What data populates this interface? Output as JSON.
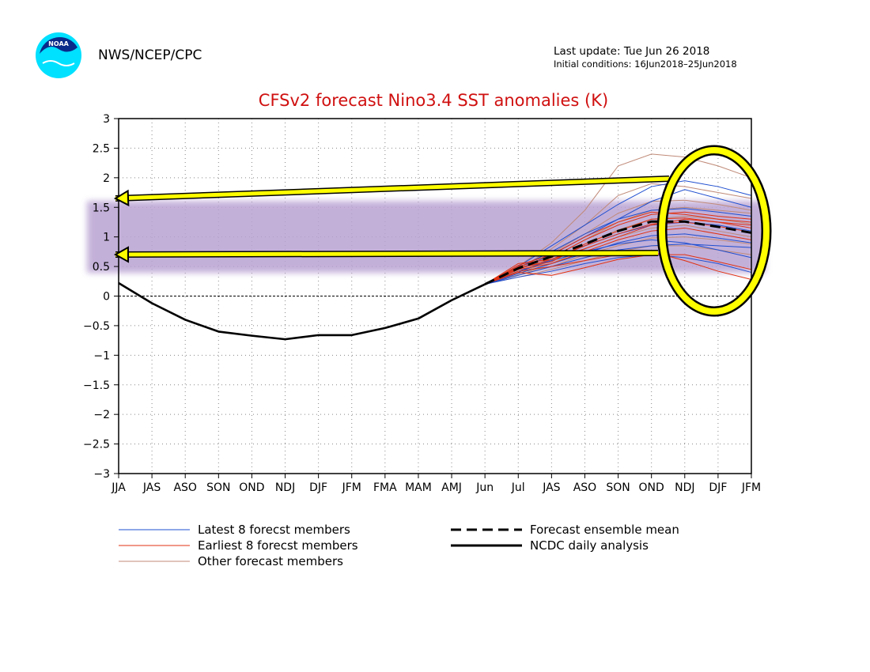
{
  "header": {
    "agency": "NWS/NCEP/CPC",
    "last_update": "Last update: Tue Jun 26 2018",
    "initial_conditions": "Initial conditions: 16Jun2018–25Jun2018",
    "logo_text": "NOAA"
  },
  "colors": {
    "title": "#d01010",
    "latest_members": "#1f4fd0",
    "earliest_members": "#e03010",
    "other_members": "#c08a78",
    "analysis": "#000000",
    "highlight_band": "#b9a3d3",
    "annotation": "#ffff00"
  },
  "chart_data": {
    "type": "line",
    "title": "CFSv2 forecast Nino3.4 SST anomalies (K)",
    "xlabel": "",
    "ylabel": "",
    "categories": [
      "JJA",
      "JAS",
      "ASO",
      "SON",
      "OND",
      "NDJ",
      "DJF",
      "JFM",
      "FMA",
      "MAM",
      "AMJ",
      "Jun",
      "Jul",
      "JAS",
      "ASO",
      "SON",
      "OND",
      "NDJ",
      "DJF",
      "JFM"
    ],
    "ylim": [
      -3,
      3
    ],
    "yticks": [
      {
        "value": 3,
        "label": "3"
      },
      {
        "value": 2.5,
        "label": "2.5"
      },
      {
        "value": 2,
        "label": "2"
      },
      {
        "value": 1.5,
        "label": "1.5"
      },
      {
        "value": 1,
        "label": "1"
      },
      {
        "value": 0.5,
        "label": "0.5"
      },
      {
        "value": 0,
        "label": "0"
      },
      {
        "value": -0.5,
        "label": "−0.5"
      },
      {
        "value": -1,
        "label": "−1"
      },
      {
        "value": -1.5,
        "label": "−1.5"
      },
      {
        "value": -2,
        "label": "−2"
      },
      {
        "value": -2.5,
        "label": "−2.5"
      },
      {
        "value": -3,
        "label": "−3"
      }
    ],
    "grid": true,
    "series": [
      {
        "name": "NCDC daily analysis",
        "style": "solid-thick",
        "color": "#000000",
        "values": [
          0.22,
          -0.12,
          -0.4,
          -0.6,
          -0.67,
          -0.73,
          -0.66,
          -0.66,
          -0.54,
          -0.38,
          -0.07,
          0.2,
          null,
          null,
          null,
          null,
          null,
          null,
          null,
          null
        ]
      },
      {
        "name": "Forecast ensemble mean",
        "style": "dashed-thick",
        "color": "#000000",
        "values": [
          null,
          null,
          null,
          null,
          null,
          null,
          null,
          null,
          null,
          null,
          null,
          0.2,
          0.47,
          0.67,
          0.88,
          1.1,
          1.26,
          1.26,
          1.17,
          1.07
        ]
      },
      {
        "name": "Latest 8 forecst members",
        "style": "thin",
        "color": "#1f4fd0",
        "members": [
          [
            0.2,
            0.45,
            0.7,
            1.0,
            1.3,
            1.6,
            1.8,
            1.65,
            1.5
          ],
          [
            0.2,
            0.4,
            0.62,
            0.85,
            1.05,
            1.2,
            1.25,
            1.2,
            1.1
          ],
          [
            0.2,
            0.35,
            0.5,
            0.65,
            0.78,
            0.85,
            0.88,
            0.85,
            0.82
          ],
          [
            0.2,
            0.5,
            0.85,
            1.2,
            1.55,
            1.85,
            1.95,
            1.85,
            1.7
          ],
          [
            0.2,
            0.42,
            0.6,
            0.75,
            0.88,
            0.95,
            0.9,
            0.78,
            0.65
          ],
          [
            0.2,
            0.38,
            0.55,
            0.72,
            0.9,
            1.02,
            1.05,
            0.98,
            0.9
          ],
          [
            0.2,
            0.32,
            0.42,
            0.55,
            0.65,
            0.7,
            0.65,
            0.55,
            0.4
          ],
          [
            0.2,
            0.48,
            0.75,
            1.05,
            1.3,
            1.45,
            1.48,
            1.42,
            1.35
          ]
        ]
      },
      {
        "name": "Earliest 8 forecst members",
        "style": "thin",
        "color": "#e03010",
        "members": [
          [
            0.2,
            0.55,
            0.62,
            0.8,
            1.0,
            1.2,
            1.3,
            1.25,
            1.2
          ],
          [
            0.2,
            0.45,
            0.55,
            0.75,
            0.95,
            1.1,
            1.15,
            1.05,
            0.95
          ],
          [
            0.2,
            0.5,
            0.65,
            0.95,
            1.2,
            1.38,
            1.42,
            1.35,
            1.3
          ],
          [
            0.2,
            0.4,
            0.35,
            0.48,
            0.62,
            0.7,
            0.7,
            0.58,
            0.45
          ],
          [
            0.2,
            0.48,
            0.58,
            0.88,
            1.1,
            1.3,
            1.32,
            1.25,
            1.15
          ],
          [
            0.2,
            0.52,
            0.7,
            1.0,
            1.25,
            1.42,
            1.38,
            1.3,
            1.25
          ],
          [
            0.2,
            0.42,
            0.5,
            0.6,
            0.7,
            0.75,
            0.6,
            0.42,
            0.28
          ],
          [
            0.2,
            0.46,
            0.62,
            0.85,
            1.05,
            1.22,
            1.25,
            1.18,
            1.08
          ]
        ]
      },
      {
        "name": "Other forecast members",
        "style": "thin",
        "color": "#c08a78",
        "members": [
          [
            0.2,
            0.5,
            0.9,
            1.45,
            2.2,
            2.4,
            2.35,
            2.2,
            2.0
          ],
          [
            0.2,
            0.45,
            0.8,
            1.2,
            1.7,
            1.9,
            1.85,
            1.75,
            1.65
          ],
          [
            0.2,
            0.4,
            0.65,
            0.95,
            1.25,
            1.45,
            1.5,
            1.45,
            1.4
          ],
          [
            0.2,
            0.35,
            0.55,
            0.8,
            1.0,
            1.15,
            1.2,
            1.1,
            1.0
          ],
          [
            0.2,
            0.38,
            0.6,
            0.88,
            1.12,
            1.3,
            1.35,
            1.3,
            1.22
          ],
          [
            0.2,
            0.32,
            0.45,
            0.6,
            0.75,
            0.85,
            0.85,
            0.78,
            0.7
          ],
          [
            0.2,
            0.44,
            0.72,
            1.05,
            1.4,
            1.6,
            1.62,
            1.55,
            1.45
          ],
          [
            0.2,
            0.36,
            0.5,
            0.7,
            0.85,
            0.98,
            1.0,
            0.95,
            0.88
          ]
        ]
      }
    ],
    "forecast_start_index": 11,
    "highlight_band": {
      "from": 0.5,
      "to": 1.5
    },
    "legend": {
      "placement": "bottom",
      "items": [
        {
          "label": "Latest 8 forecst members",
          "style": "thin",
          "color": "#1f4fd0"
        },
        {
          "label": "Forecast ensemble mean",
          "style": "dashed-thick",
          "color": "#000000"
        },
        {
          "label": "Earliest 8 forecst members",
          "style": "thin",
          "color": "#e03010"
        },
        {
          "label": "NCDC daily analysis",
          "style": "solid-thick",
          "color": "#000000"
        },
        {
          "label": "Other forecast members",
          "style": "thin",
          "color": "#c08a78"
        }
      ]
    }
  }
}
